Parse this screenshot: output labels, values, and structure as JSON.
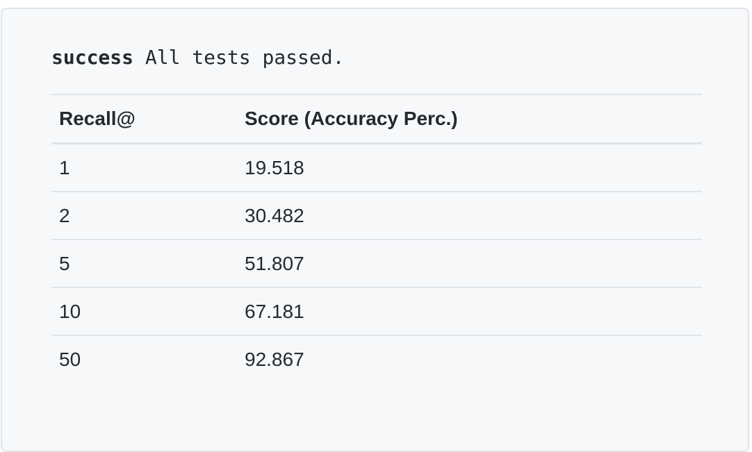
{
  "status": {
    "label": "success",
    "message": "All tests passed."
  },
  "table": {
    "headers": [
      "Recall@",
      "Score (Accuracy Perc.)"
    ],
    "rows": [
      [
        "1",
        "19.518"
      ],
      [
        "2",
        "30.482"
      ],
      [
        "5",
        "51.807"
      ],
      [
        "10",
        "67.181"
      ],
      [
        "50",
        "92.867"
      ]
    ]
  }
}
